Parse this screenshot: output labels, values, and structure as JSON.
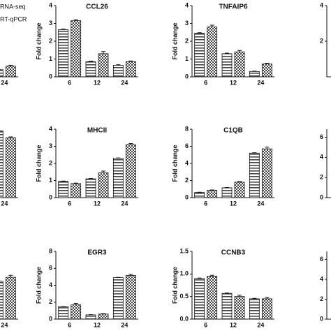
{
  "chart_data": [
    {
      "type": "bar",
      "categories": [
        null,
        null,
        "24"
      ],
      "series": [
        {
          "name": "RNA-seq",
          "color": "#444444",
          "pattern": "stripes",
          "values": [
            null,
            null,
            0.4
          ],
          "errors": [
            null,
            null,
            0.03
          ]
        },
        {
          "name": "RT-qPCR",
          "color": "#444444",
          "pattern": "checks",
          "values": [
            null,
            null,
            0.6
          ],
          "errors": [
            null,
            null,
            0.05
          ]
        }
      ],
      "ylim": [
        0,
        4
      ],
      "legend": "top-left"
    },
    {
      "type": "bar",
      "title": "CCL26",
      "ylabel": "Fold change",
      "categories": [
        "6",
        "12",
        "24"
      ],
      "series": [
        {
          "color": "#444444",
          "pattern": "stripes",
          "values": [
            2.65,
            0.85,
            0.65
          ],
          "errors": [
            0.03,
            0.03,
            0.03
          ]
        },
        {
          "color": "#444444",
          "pattern": "checks",
          "values": [
            3.15,
            1.3,
            0.85
          ],
          "errors": [
            0.05,
            0.12,
            0.04
          ]
        }
      ],
      "ylim": [
        0,
        4
      ],
      "yticks": [
        0,
        1,
        2,
        3,
        4
      ]
    },
    {
      "type": "bar",
      "title": "TNFAIP6",
      "ylabel": "Fold change",
      "categories": [
        "6",
        "12",
        "24"
      ],
      "series": [
        {
          "color": "#444444",
          "pattern": "stripes",
          "values": [
            2.45,
            1.3,
            0.3
          ],
          "errors": [
            0.03,
            0.03,
            0.02
          ]
        },
        {
          "color": "#444444",
          "pattern": "checks",
          "values": [
            2.8,
            1.4,
            0.72
          ],
          "errors": [
            0.1,
            0.08,
            0.04
          ]
        }
      ],
      "ylim": [
        0,
        4
      ],
      "yticks": [
        0,
        1,
        2,
        3,
        4
      ]
    },
    {
      "type": "bar",
      "ylim": [
        0,
        4
      ],
      "yticks": [
        2,
        4
      ]
    },
    {
      "type": "bar",
      "categories": [
        null,
        null,
        "24"
      ],
      "series": [
        {
          "color": "#444444",
          "pattern": "stripes",
          "values": [
            null,
            null,
            3.9
          ],
          "errors": [
            null,
            null,
            0.03
          ]
        },
        {
          "color": "#444444",
          "pattern": "checks",
          "values": [
            null,
            null,
            3.5
          ],
          "errors": [
            null,
            null,
            0.05
          ]
        }
      ],
      "ylim": [
        0,
        4
      ]
    },
    {
      "type": "bar",
      "title": "MHCII",
      "ylabel": "Fold change",
      "categories": [
        "6",
        "12",
        "24"
      ],
      "series": [
        {
          "color": "#444444",
          "pattern": "stripes",
          "values": [
            0.95,
            1.1,
            2.3
          ],
          "errors": [
            0.02,
            0.02,
            0.02
          ]
        },
        {
          "color": "#444444",
          "pattern": "checks",
          "values": [
            0.82,
            1.45,
            3.1
          ],
          "errors": [
            0.03,
            0.1,
            0.06
          ]
        }
      ],
      "ylim": [
        0,
        4
      ],
      "yticks": [
        0,
        1,
        2,
        3,
        4
      ]
    },
    {
      "type": "bar",
      "title": "C1QB",
      "ylabel": "Fold change",
      "categories": [
        "6",
        "12",
        "24"
      ],
      "series": [
        {
          "color": "#444444",
          "pattern": "stripes",
          "values": [
            0.6,
            1.15,
            5.2
          ],
          "errors": [
            0.03,
            0.03,
            0.05
          ]
        },
        {
          "color": "#444444",
          "pattern": "checks",
          "values": [
            0.85,
            1.8,
            5.7
          ],
          "errors": [
            0.05,
            0.08,
            0.2
          ]
        }
      ],
      "ylim": [
        0,
        8
      ],
      "yticks": [
        0,
        2,
        4,
        6,
        8
      ]
    },
    {
      "type": "bar",
      "ylim": [
        0,
        6.8
      ],
      "yticks": [
        0,
        2,
        4,
        6
      ]
    },
    {
      "type": "bar",
      "categories": [
        null,
        null,
        "24"
      ],
      "series": [
        {
          "color": "#444444",
          "pattern": "stripes",
          "values": [
            null,
            null,
            3.8
          ],
          "errors": [
            null,
            null,
            0.03
          ]
        },
        {
          "color": "#444444",
          "pattern": "checks",
          "values": [
            null,
            null,
            4.2
          ],
          "errors": [
            null,
            null,
            0.2
          ]
        }
      ],
      "ylim": [
        0,
        6.8
      ]
    },
    {
      "type": "bar",
      "title": "EGR3",
      "ylabel": "Fold change",
      "categories": [
        "6",
        "12",
        "24"
      ],
      "series": [
        {
          "color": "#444444",
          "pattern": "stripes",
          "values": [
            1.5,
            0.5,
            4.9
          ],
          "errors": [
            0.03,
            0.03,
            0.03
          ]
        },
        {
          "color": "#444444",
          "pattern": "checks",
          "values": [
            1.7,
            0.6,
            5.15
          ],
          "errors": [
            0.15,
            0.05,
            0.15
          ]
        }
      ],
      "ylim": [
        0,
        8
      ],
      "yticks": [
        0,
        2,
        4,
        6,
        8
      ]
    },
    {
      "type": "bar",
      "title": "CCNB3",
      "ylabel": "Fold change",
      "categories": [
        "6",
        "12",
        "24"
      ],
      "series": [
        {
          "color": "#444444",
          "pattern": "stripes",
          "values": [
            0.9,
            0.57,
            0.45
          ],
          "errors": [
            0.01,
            0.01,
            0.01
          ]
        },
        {
          "color": "#444444",
          "pattern": "checks",
          "values": [
            0.95,
            0.5,
            0.45
          ],
          "errors": [
            0.02,
            0.03,
            0.03
          ]
        }
      ],
      "ylim": [
        0,
        1.5
      ],
      "yticks": [
        {
          "value": 0,
          "label": "0.0"
        },
        {
          "value": 0.5,
          "label": "0.5"
        },
        {
          "value": 1,
          "label": "1.0"
        },
        {
          "value": 1.5,
          "label": "1.5"
        }
      ]
    },
    {
      "type": "bar",
      "ylim": [
        0,
        6.8
      ],
      "yticks": [
        0,
        2,
        4,
        6
      ]
    }
  ]
}
